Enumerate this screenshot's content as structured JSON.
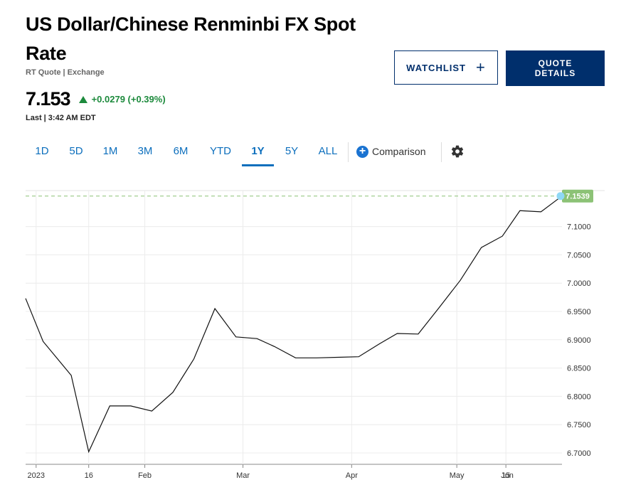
{
  "header": {
    "title": "US Dollar/Chinese Renminbi FX Spot Rate",
    "subtitle": "RT Quote | Exchange",
    "price": "7.153",
    "change": "+0.0279 (+0.39%)",
    "last_time": "Last | 3:42 AM EDT"
  },
  "buttons": {
    "watchlist_label": "WATCHLIST",
    "quote_details_label": "QUOTE DETAILS"
  },
  "tabs": [
    {
      "label": "1D",
      "active": false
    },
    {
      "label": "5D",
      "active": false
    },
    {
      "label": "1M",
      "active": false
    },
    {
      "label": "3M",
      "active": false
    },
    {
      "label": "6M",
      "active": false
    },
    {
      "label": "YTD",
      "active": false
    },
    {
      "label": "1Y",
      "active": true
    },
    {
      "label": "5Y",
      "active": false
    },
    {
      "label": "ALL",
      "active": false
    }
  ],
  "comparison_label": "Comparison",
  "colors": {
    "accent": "#0d6fbd",
    "navy": "#002f6c",
    "positive": "#1c8a3c",
    "last_badge": "#8cc276",
    "marker": "#8fd8f5"
  },
  "chart_data": {
    "type": "line",
    "x_tick_labels": [
      "2023",
      "16",
      "Feb",
      "Mar",
      "Apr",
      "May",
      "15",
      "Jun"
    ],
    "y_ticks": [
      "6.7000",
      "6.7500",
      "6.8000",
      "6.8500",
      "6.9000",
      "6.9500",
      "7.0000",
      "7.0500",
      "7.1000"
    ],
    "ylim": [
      6.69,
      7.17
    ],
    "x_range_days": [
      -3,
      150
    ],
    "last_value_label": "7.1539",
    "grid": true,
    "series": [
      {
        "x_days": [
          -3,
          2,
          10,
          15,
          21,
          27,
          33,
          39,
          45,
          51,
          57,
          63,
          68,
          74,
          80,
          86,
          92,
          98,
          103,
          109,
          115,
          121,
          127,
          133,
          138,
          144,
          150
        ],
        "values": [
          6.973,
          6.897,
          6.837,
          6.702,
          6.783,
          6.783,
          6.774,
          6.807,
          6.866,
          6.955,
          6.905,
          6.902,
          6.888,
          6.868,
          6.868,
          6.869,
          6.87,
          6.893,
          6.911,
          6.91,
          6.957,
          7.005,
          7.063,
          7.083,
          7.128,
          7.126,
          7.1539
        ]
      }
    ]
  }
}
